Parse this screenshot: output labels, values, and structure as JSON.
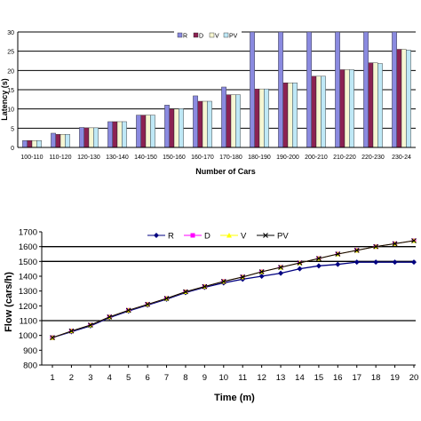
{
  "colors": {
    "R": "#8a8ae0",
    "D": "#8b2252",
    "V": "#f6f6d2",
    "PV": "#bfe8f6",
    "grid": "#000000",
    "lineR": "#000080",
    "lineD": "#ff00ff",
    "lineV": "#ffff00",
    "linePV": "#000000"
  },
  "chart_data": [
    {
      "type": "bar",
      "title": "",
      "xlabel": "Number of Cars",
      "ylabel": "Latency (s)",
      "ylim": [
        0,
        30
      ],
      "yticks": [
        "0",
        "5",
        "10",
        "15",
        "20",
        "25",
        "30"
      ],
      "grid": true,
      "legend": "top-center",
      "categories": [
        "100-110",
        "110-120",
        "120-130",
        "130-140",
        "140-150",
        "150-160",
        "160-170",
        "170-180",
        "180-190",
        "190-200",
        "200-210",
        "210-220",
        "220-230",
        "230-24"
      ],
      "series": [
        {
          "name": "R",
          "values": [
            1.8,
            3.7,
            5.2,
            6.7,
            8.4,
            11.0,
            13.4,
            15.7,
            30.0,
            30.0,
            30.0,
            30.0,
            30.0,
            30.0
          ]
        },
        {
          "name": "D",
          "values": [
            1.8,
            3.4,
            5.1,
            6.7,
            8.4,
            10.0,
            12.0,
            13.7,
            15.2,
            16.8,
            18.5,
            20.2,
            22.0,
            25.5
          ]
        },
        {
          "name": "V",
          "values": [
            1.8,
            3.4,
            5.1,
            6.7,
            8.4,
            10.0,
            12.0,
            13.7,
            15.2,
            16.8,
            18.5,
            20.2,
            22.0,
            25.5
          ]
        },
        {
          "name": "PV",
          "values": [
            1.8,
            3.4,
            5.1,
            6.7,
            8.4,
            10.1,
            12.0,
            13.7,
            15.2,
            16.8,
            18.5,
            20.2,
            21.8,
            25.3
          ]
        }
      ]
    },
    {
      "type": "line",
      "title": "",
      "xlabel": "Time (m)",
      "ylabel": "Flow (cars/h)",
      "ylim": [
        800,
        1700
      ],
      "xlim": [
        1,
        20
      ],
      "yticks": [
        "800",
        "900",
        "1000",
        "1100",
        "1200",
        "1300",
        "1400",
        "1500",
        "1600",
        "1700"
      ],
      "grid": true,
      "legend": "top-center",
      "x": [
        1,
        2,
        3,
        4,
        5,
        6,
        7,
        8,
        9,
        10,
        11,
        12,
        13,
        14,
        15,
        16,
        17,
        18,
        19,
        20
      ],
      "series": [
        {
          "name": "R",
          "values": [
            985,
            1025,
            1065,
            1120,
            1165,
            1205,
            1245,
            1290,
            1325,
            1355,
            1380,
            1400,
            1420,
            1450,
            1470,
            1480,
            1495,
            1495,
            1495,
            1495
          ]
        },
        {
          "name": "D",
          "values": [
            985,
            1030,
            1070,
            1125,
            1170,
            1210,
            1250,
            1295,
            1330,
            1365,
            1395,
            1430,
            1460,
            1490,
            1520,
            1550,
            1575,
            1600,
            1620,
            1640
          ]
        },
        {
          "name": "V",
          "values": [
            985,
            1030,
            1070,
            1125,
            1170,
            1210,
            1250,
            1295,
            1330,
            1365,
            1395,
            1430,
            1460,
            1490,
            1520,
            1550,
            1575,
            1600,
            1620,
            1640
          ]
        },
        {
          "name": "PV",
          "values": [
            985,
            1030,
            1070,
            1125,
            1170,
            1210,
            1250,
            1295,
            1330,
            1365,
            1395,
            1430,
            1460,
            1490,
            1520,
            1550,
            1575,
            1600,
            1620,
            1640
          ]
        }
      ]
    }
  ]
}
